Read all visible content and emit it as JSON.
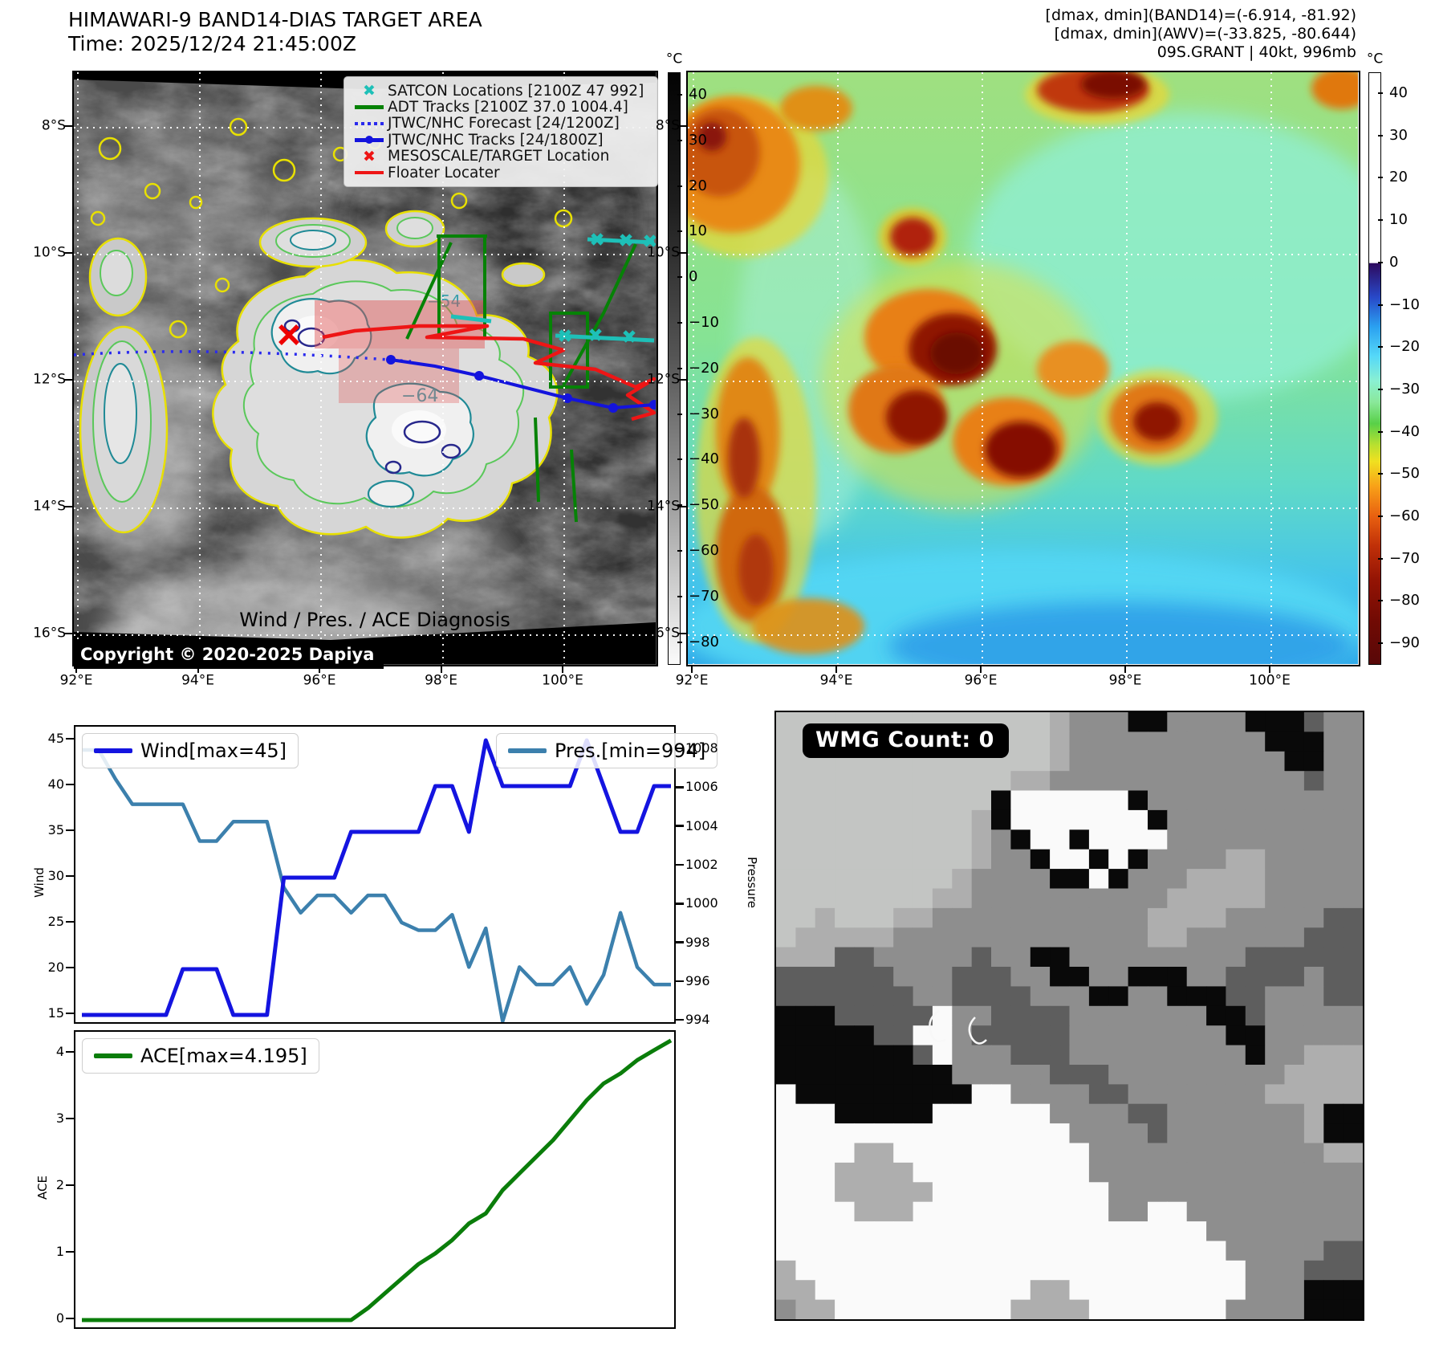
{
  "panels": {
    "band14": {
      "title_line1": "HIMAWARI-9 BAND14-DIAS TARGET AREA",
      "title_line2": "Time: 2025/12/24 21:45:00Z",
      "copyright": "Copyright © 2020-2025 Dapiya",
      "legend": [
        {
          "label": "SATCON Locations [2100Z 47 992]",
          "type": "x-marker",
          "color": "#1ec0b8"
        },
        {
          "label": "ADT Tracks [2100Z 37.0 1004.4]",
          "type": "line",
          "color": "#068206"
        },
        {
          "label": "JTWC/NHC Forecast [24/1200Z]",
          "type": "dotted",
          "color": "#2a2aee"
        },
        {
          "label": "JTWC/NHC Tracks [24/1800Z]",
          "type": "line-dot",
          "color": "#1414dd"
        },
        {
          "label": "MESOSCALE/TARGET Location",
          "type": "x-marker",
          "color": "#ee1515"
        },
        {
          "label": "Floater Locater",
          "type": "line",
          "color": "#ee1515"
        }
      ],
      "lat_ticks": [
        "8°S",
        "10°S",
        "12°S",
        "14°S",
        "16°S"
      ],
      "lon_ticks": [
        "92°E",
        "94°E",
        "96°E",
        "98°E",
        "100°E"
      ],
      "colorbar": {
        "unit": "°C",
        "ticks": [
          "40",
          "30",
          "20",
          "10",
          "0",
          "−10",
          "−20",
          "−30",
          "−40",
          "−50",
          "−60",
          "−70",
          "−80"
        ]
      },
      "contour_labels": [
        "−54",
        "−64"
      ]
    },
    "awv": {
      "info_line1": "[dmax, dmin](BAND14)=(-6.914, -81.92)",
      "info_line2": "[dmax, dmin](AWV)=(-33.825, -80.644)",
      "info_line3": "09S.GRANT | 40kt, 996mb",
      "lat_ticks": [
        "8°S",
        "10°S",
        "12°S",
        "14°S",
        "16°S"
      ],
      "lon_ticks": [
        "92°E",
        "94°E",
        "96°E",
        "98°E",
        "100°E"
      ],
      "colorbar": {
        "unit": "°C",
        "ticks": [
          "40",
          "30",
          "20",
          "10",
          "0",
          "−10",
          "−20",
          "−30",
          "−40",
          "−50",
          "−60",
          "−70",
          "−80",
          "−90"
        ]
      }
    },
    "diagnosis": {
      "title": "Wind / Pres. / ACE Diagnosis",
      "wind_legend": "Wind[max=45]",
      "pres_legend": "Pres.[min=994]",
      "ace_legend": "ACE[max=4.195]",
      "wind_ylabel": "Wind",
      "pres_ylabel": "Pressure",
      "ace_ylabel": "ACE",
      "wind_ticks": [
        "45",
        "40",
        "35",
        "30",
        "25",
        "20",
        "15"
      ],
      "pres_ticks": [
        "1008",
        "1006",
        "1004",
        "1002",
        "1000",
        "998",
        "996",
        "994"
      ],
      "ace_ticks": [
        "4",
        "3",
        "2",
        "1",
        "0"
      ]
    },
    "wmg": {
      "count_label": "WMG Count: 0",
      "palette": {
        "a": "#c3c5c3",
        "b": "#aeaeae",
        "m": "#8e8e8e",
        "d": "#5e5e5e",
        "k": "#090909",
        "w": "#fafafa"
      },
      "pixel_rows": [
        "aaaaaaaaaaaaaabmmmkkmmmmkkkdmm",
        "aaaaaaaaaaaaaabmmmmmmmmmmkkkmm",
        "aaaaaaaaaaaaaabmmmmmmmmmmmkkmm",
        "aaaaaaaaaaaabbmmmmmmmmmmmmmdmm",
        "aaaaaaaaaaakwwwwwwkmmmmmmmmmmm",
        "aaaaaaaaaabkwwwwwwwkmmmmmmmmmm",
        "aaaaaaaaaabmkwwkwwwwmmmmmmmmmm",
        "aaaaaaaaaabmmkwwkwkmmmmbbmmmmm",
        "aaaaaaaaabmmmmkkwkmmmbbbbmmmmm",
        "aaaaaaaabbmmmmmmmmmmbbbbbmmmmm",
        "aabaaabbmmmmmmmmmmmbbbbmmmmmdd",
        "abbbbbmmmmmmmmmmmmmbbmmmmmmddd",
        "bbbddmmmmmdmmkkmmmmmmmmmdddddd",
        "ddddddmmmdddmmkkmmkkkmmddddmdd",
        "dddddddmmddddmmmkkmmkkkddmmmdd",
        "kkkdddddwmmddddmmmmmmmkkdmmmmm",
        "kkkkkddwwmdddddmmmmmmmmkkmmmmm",
        "kkkkkkkdwmmmdddmmmmmmmmmkmmbbb",
        "kkkkkkkkkmmmmmdddmmmmmmmmmbbbb",
        "wkkkkkkkkkwwmmmmddmmmmmmmbbbbb",
        "wwwkkkkkwwwwwwmmmmddmmmmmmmbkk",
        "wwwwwwwwwwwwwwwmmmmdmmmmmmmbkk",
        "wwwwbbwwwwwwwwwwmmmmmmmmmmmmbb",
        "wwwbbbbwwwwwwwwwmmmmmmmmmmmmmm",
        "wwwbbbbbwwwwwwwwwmmmmmmmmmmmmm",
        "wwwwbbbwwwwwwwwwwmmwwmmmmmmmmm",
        "wwwwwwwwwwwwwwwwwwwwwwmmmmmmmm",
        "wwwwwwwwwwwwwwwwwwwwwwwmmmmmdd",
        "bwwwwwwwwwwwwwwwwwwwwwwwmmmddd",
        "bbwwwwwwwwwwwbbwwwwwwwwwmmmkkk",
        "mbbwwwwwwwwwbbbbwwwwwwwmmmmkkk"
      ]
    }
  },
  "colors": {
    "wind_line": "#1414e0",
    "pressure_line": "#3c80ad",
    "ace_line": "#0a7d0a",
    "forecast_dotted": "#2a2aee",
    "track_blue": "#1414dd",
    "floater_red": "#ee1515",
    "adt_green": "#068206",
    "satcon_cyan": "#1ec0b8",
    "contour_yellow": "#e8e000",
    "contour_green": "#5ac85a",
    "contour_teal": "#1f8a96",
    "contour_navy": "#28288c"
  },
  "chart_data": [
    {
      "type": "line",
      "title": "Wind / Pres. / ACE Diagnosis",
      "x": [
        0,
        1,
        2,
        3,
        4,
        5,
        6,
        7,
        8,
        9,
        10,
        11,
        12,
        13,
        14,
        15,
        16,
        17,
        18,
        19,
        20,
        21,
        22,
        23,
        24,
        25,
        26,
        27,
        28,
        29,
        30,
        31,
        32,
        33,
        34,
        35
      ],
      "series": [
        {
          "name": "Wind[max=45]",
          "axis": "left",
          "color": "#1414e0",
          "values": [
            15,
            15,
            15,
            15,
            15,
            15,
            20,
            20,
            20,
            15,
            15,
            15,
            30,
            30,
            30,
            30,
            35,
            35,
            35,
            35,
            35,
            40,
            40,
            35,
            45,
            40,
            40,
            40,
            40,
            40,
            45,
            40,
            35,
            35,
            40,
            40
          ]
        },
        {
          "name": "Pres.[min=994]",
          "axis": "right",
          "color": "#3c80ad",
          "values": [
            1008,
            1008,
            1006.5,
            1005.2,
            1005.2,
            1005.2,
            1005.2,
            1003.3,
            1003.3,
            1004.3,
            1004.3,
            1004.3,
            1000.9,
            999.6,
            1000.5,
            1000.5,
            999.6,
            1000.5,
            1000.5,
            999.1,
            998.7,
            998.7,
            999.5,
            996.8,
            998.8,
            994,
            996.8,
            995.9,
            995.9,
            996.8,
            994.9,
            996.4,
            999.6,
            996.8,
            995.9,
            995.9
          ]
        }
      ],
      "ylabel_left": "Wind",
      "ylabel_right": "Pressure",
      "ylim_left": [
        13.5,
        46.5
      ],
      "ylim_right": [
        993.5,
        1008.5
      ],
      "yticks_left": [
        45,
        40,
        35,
        30,
        25,
        20,
        15
      ],
      "yticks_right": [
        1008,
        1006,
        1004,
        1002,
        1000,
        998,
        996,
        994
      ],
      "legend_position": "upper left / upper right",
      "grid": false
    },
    {
      "type": "line",
      "x": [
        0,
        1,
        2,
        3,
        4,
        5,
        6,
        7,
        8,
        9,
        10,
        11,
        12,
        13,
        14,
        15,
        16,
        17,
        18,
        19,
        20,
        21,
        22,
        23,
        24,
        25,
        26,
        27,
        28,
        29,
        30,
        31,
        32,
        33,
        34,
        35
      ],
      "series": [
        {
          "name": "ACE[max=4.195]",
          "color": "#0a7d0a",
          "values": [
            0,
            0,
            0,
            0,
            0,
            0,
            0,
            0,
            0,
            0,
            0,
            0,
            0,
            0,
            0,
            0,
            0,
            0.18,
            0.4,
            0.62,
            0.84,
            1.0,
            1.2,
            1.45,
            1.6,
            1.95,
            2.2,
            2.45,
            2.7,
            3.0,
            3.3,
            3.55,
            3.7,
            3.9,
            4.05,
            4.195
          ]
        }
      ],
      "ylabel": "ACE",
      "ylim": [
        -0.25,
        4.45
      ],
      "yticks": [
        4,
        3,
        2,
        1,
        0
      ],
      "legend_position": "upper left",
      "grid": false
    }
  ]
}
